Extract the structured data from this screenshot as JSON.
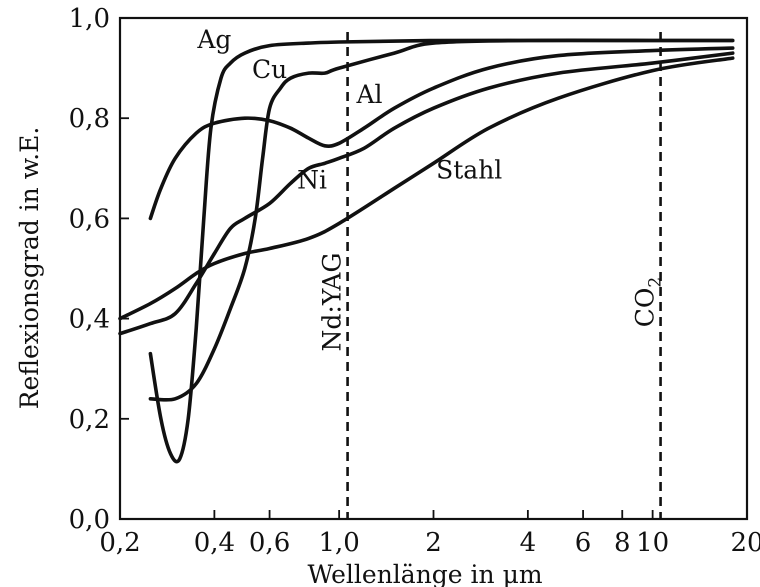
{
  "chart_data": {
    "type": "line",
    "title": "",
    "xlabel": "Wellenlänge in µm",
    "ylabel": "Reflexionsgrad in w.E.",
    "xscale": "log",
    "xlim": [
      0.2,
      20
    ],
    "ylim": [
      0.0,
      1.0
    ],
    "grid": false,
    "legend": "none",
    "line_color": "#111111",
    "x_ticks": [
      {
        "value": 0.2,
        "label": "0,2"
      },
      {
        "value": 0.4,
        "label": "0,4"
      },
      {
        "value": 0.6,
        "label": "0,6"
      },
      {
        "value": 1.0,
        "label": "1,0"
      },
      {
        "value": 2,
        "label": "2"
      },
      {
        "value": 4,
        "label": "4"
      },
      {
        "value": 6,
        "label": "6"
      },
      {
        "value": 8,
        "label": "8"
      },
      {
        "value": 10,
        "label": "10"
      },
      {
        "value": 20,
        "label": "20"
      }
    ],
    "y_ticks": [
      {
        "value": 0.0,
        "label": "0,0"
      },
      {
        "value": 0.2,
        "label": "0,2"
      },
      {
        "value": 0.4,
        "label": "0,4"
      },
      {
        "value": 0.6,
        "label": "0,6"
      },
      {
        "value": 0.8,
        "label": "0,8"
      },
      {
        "value": 1.0,
        "label": "1,0"
      }
    ],
    "series": [
      {
        "name": "Ag",
        "label_at": [
          0.4,
          0.94
        ],
        "x": [
          0.25,
          0.27,
          0.29,
          0.31,
          0.33,
          0.35,
          0.37,
          0.39,
          0.42,
          0.45,
          0.5,
          0.6,
          0.8,
          1.0,
          2,
          5,
          10,
          18
        ],
        "y": [
          0.33,
          0.2,
          0.13,
          0.12,
          0.2,
          0.38,
          0.6,
          0.78,
          0.88,
          0.91,
          0.93,
          0.945,
          0.95,
          0.952,
          0.955,
          0.955,
          0.955,
          0.955
        ]
      },
      {
        "name": "Cu",
        "label_at": [
          0.6,
          0.88
        ],
        "x": [
          0.25,
          0.3,
          0.35,
          0.4,
          0.45,
          0.5,
          0.54,
          0.57,
          0.6,
          0.65,
          0.7,
          0.8,
          0.9,
          1.0,
          1.5,
          2,
          4,
          10,
          18
        ],
        "y": [
          0.24,
          0.24,
          0.27,
          0.34,
          0.42,
          0.5,
          0.6,
          0.72,
          0.82,
          0.86,
          0.88,
          0.89,
          0.89,
          0.9,
          0.93,
          0.95,
          0.955,
          0.955,
          0.955
        ]
      },
      {
        "name": "Al",
        "label_at": [
          1.25,
          0.83
        ],
        "x": [
          0.25,
          0.27,
          0.3,
          0.35,
          0.4,
          0.5,
          0.6,
          0.7,
          0.8,
          0.9,
          1.0,
          1.2,
          1.5,
          2,
          3,
          5,
          10,
          18
        ],
        "y": [
          0.6,
          0.66,
          0.72,
          0.77,
          0.79,
          0.8,
          0.795,
          0.78,
          0.76,
          0.745,
          0.75,
          0.78,
          0.82,
          0.86,
          0.9,
          0.925,
          0.935,
          0.94
        ]
      },
      {
        "name": "Ni",
        "label_at": [
          0.82,
          0.66
        ],
        "x": [
          0.2,
          0.25,
          0.3,
          0.35,
          0.4,
          0.45,
          0.5,
          0.6,
          0.7,
          0.8,
          0.9,
          1.0,
          1.2,
          1.5,
          2,
          3,
          5,
          10,
          18
        ],
        "y": [
          0.37,
          0.39,
          0.41,
          0.47,
          0.53,
          0.58,
          0.6,
          0.63,
          0.67,
          0.7,
          0.71,
          0.72,
          0.74,
          0.78,
          0.82,
          0.86,
          0.89,
          0.91,
          0.93
        ]
      },
      {
        "name": "Stahl",
        "label_at": [
          2.6,
          0.68
        ],
        "x": [
          0.2,
          0.25,
          0.3,
          0.35,
          0.4,
          0.5,
          0.6,
          0.8,
          1.0,
          1.5,
          2,
          3,
          5,
          10,
          18
        ],
        "y": [
          0.4,
          0.43,
          0.46,
          0.49,
          0.51,
          0.53,
          0.54,
          0.56,
          0.59,
          0.66,
          0.71,
          0.78,
          0.84,
          0.895,
          0.92
        ]
      }
    ],
    "vertical_lines": [
      {
        "x": 1.064,
        "label": "Nd:YAG"
      },
      {
        "x": 10.6,
        "label": "CO",
        "label_sub": "2"
      }
    ]
  }
}
